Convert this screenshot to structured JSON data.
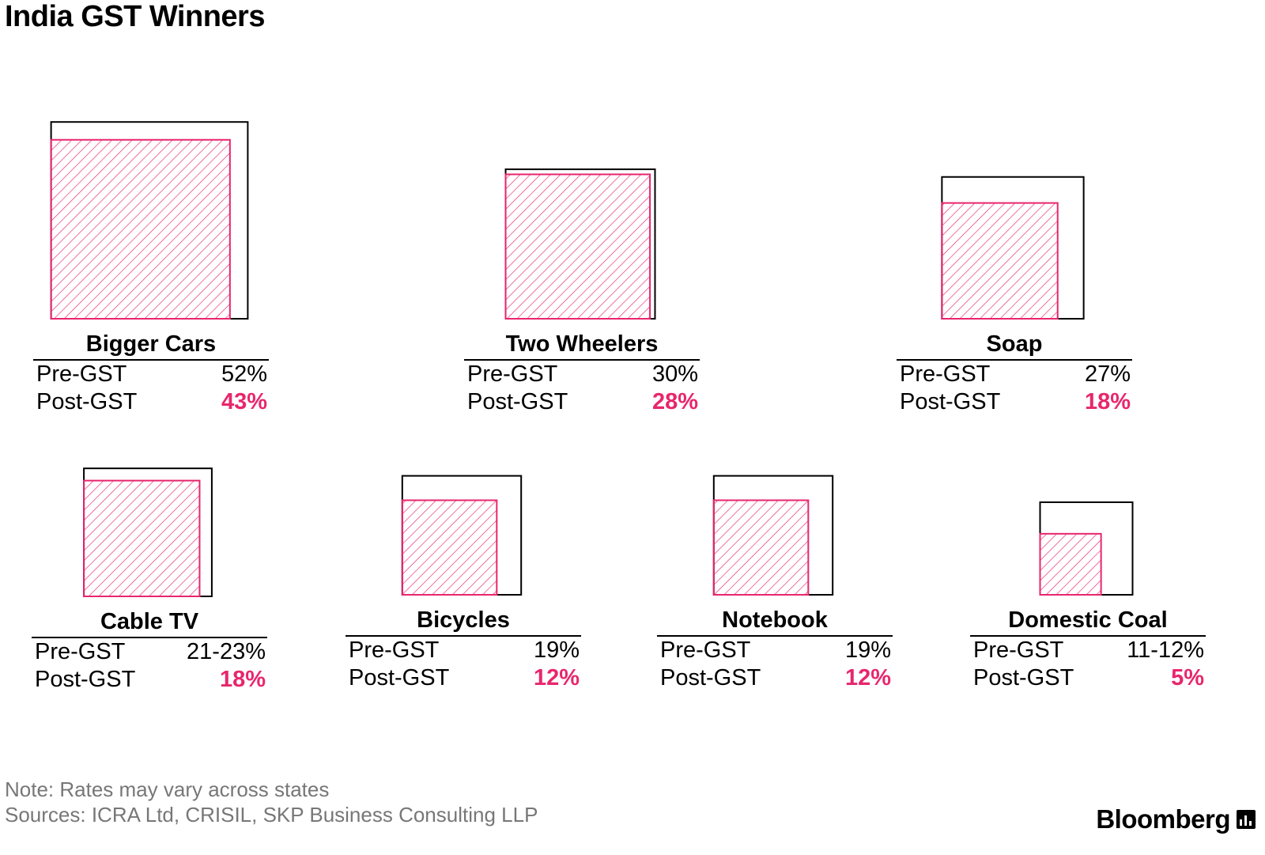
{
  "title": "India GST Winners",
  "note": "Note: Rates may vary across states",
  "sources": "Sources: ICRA Ltd, CRISIL, SKP Business Consulting LLP",
  "brand": "Bloomberg",
  "labels": {
    "pre": "Pre-GST",
    "post": "Post-GST"
  },
  "colors": {
    "post": "#e8266d",
    "pre_outline": "#000000"
  },
  "chart_data": {
    "type": "area",
    "encoding": "nested squares; square area proportional to tax rate",
    "items": [
      {
        "name": "Bigger Cars",
        "pre_label": "52%",
        "post_label": "43%",
        "pre": 52,
        "post": 43
      },
      {
        "name": "Two Wheelers",
        "pre_label": "30%",
        "post_label": "28%",
        "pre": 30,
        "post": 28
      },
      {
        "name": "Soap",
        "pre_label": "27%",
        "post_label": "18%",
        "pre": 27,
        "post": 18
      },
      {
        "name": "Cable TV",
        "pre_label": "21-23%",
        "post_label": "18%",
        "pre": 22,
        "post": 18
      },
      {
        "name": "Bicycles",
        "pre_label": "19%",
        "post_label": "12%",
        "pre": 19,
        "post": 12
      },
      {
        "name": "Notebook",
        "pre_label": "19%",
        "post_label": "12%",
        "pre": 19,
        "post": 12
      },
      {
        "name": "Domestic Coal",
        "pre_label": "11-12%",
        "post_label": "5%",
        "pre": 11.5,
        "post": 5
      }
    ]
  }
}
